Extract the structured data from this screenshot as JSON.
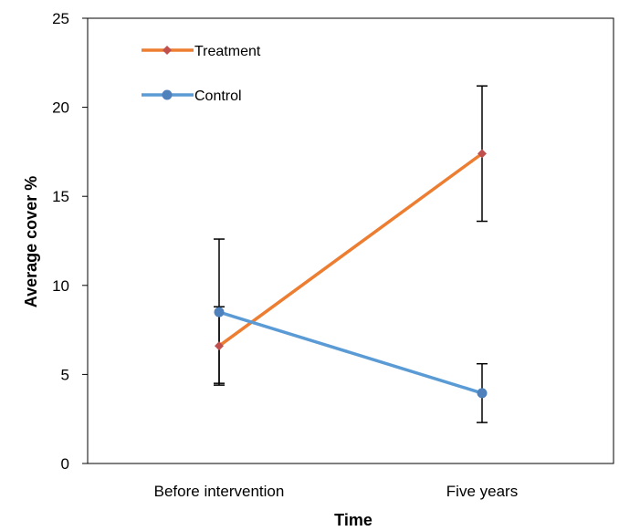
{
  "chart_data": {
    "type": "line",
    "title": "",
    "xlabel": "Time",
    "ylabel": "Average cover %",
    "categories": [
      "Before intervention",
      "Five years"
    ],
    "ylim": [
      0,
      25
    ],
    "yticks": [
      0,
      5,
      10,
      15,
      20,
      25
    ],
    "grid": false,
    "legend_position": "top-left",
    "series": [
      {
        "name": "Treatment",
        "color": "#ED7D31",
        "marker": "diamond",
        "marker_color": "#C0504D",
        "values": [
          6.6,
          17.4
        ],
        "error_low": [
          4.4,
          13.6
        ],
        "error_high": [
          8.8,
          21.2
        ]
      },
      {
        "name": "Control",
        "color": "#5B9BD5",
        "marker": "circle",
        "marker_color": "#4F81BD",
        "values": [
          8.5,
          3.95
        ],
        "error_low": [
          4.5,
          2.3
        ],
        "error_high": [
          12.6,
          5.6
        ]
      }
    ]
  }
}
